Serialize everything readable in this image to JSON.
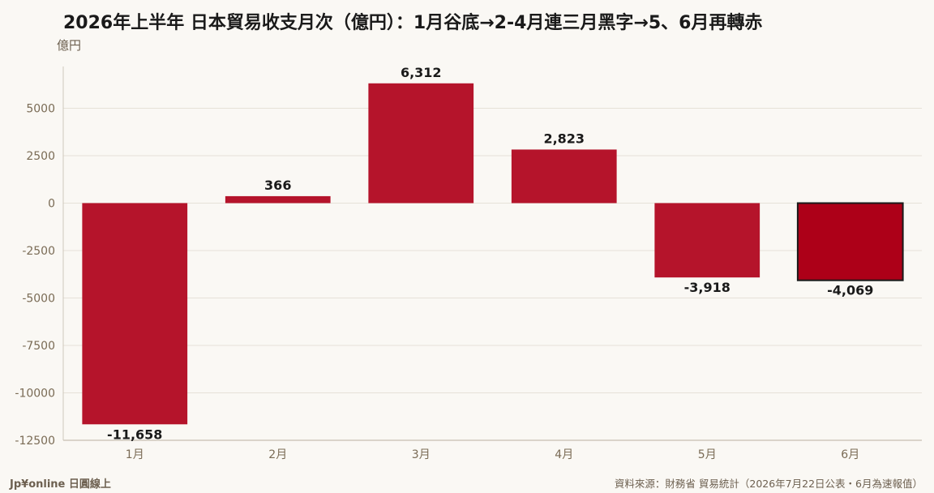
{
  "title": "2026年上半年 日本貿易收支月次（億円）：1月谷底→2-4月連三月黑字→5、6月再轉赤",
  "y_unit": "億円",
  "brand": "Jp¥online 日圓線上",
  "source": "資料來源：財務省 貿易統計（2026年7月22日公表・6月為速報值）",
  "colors": {
    "bar": "#b5142b",
    "bar_highlight": "#ad0018",
    "axis_text": "#7a6b55",
    "grid": "#e6e1d8",
    "label": "#1a1a1a"
  },
  "chart_data": {
    "type": "bar",
    "categories": [
      "1月",
      "2月",
      "3月",
      "4月",
      "5月",
      "6月"
    ],
    "values": [
      -11658,
      366,
      6312,
      2823,
      -3918,
      -4069
    ],
    "value_labels": [
      "-11,658",
      "366",
      "6,312",
      "2,823",
      "-3,918",
      "-4,069"
    ],
    "highlight_index": 5,
    "title": "2026年上半年 日本貿易收支月次（億円）：1月谷底→2-4月連三月黑字→5、6月再轉赤",
    "ylabel": "億円",
    "xlabel": "",
    "ylim": [
      -12500,
      7200
    ],
    "yticks": [
      5000,
      2500,
      0,
      -2500,
      -5000,
      -7500,
      -10000,
      -12500
    ],
    "grid": true,
    "legend": "none"
  }
}
